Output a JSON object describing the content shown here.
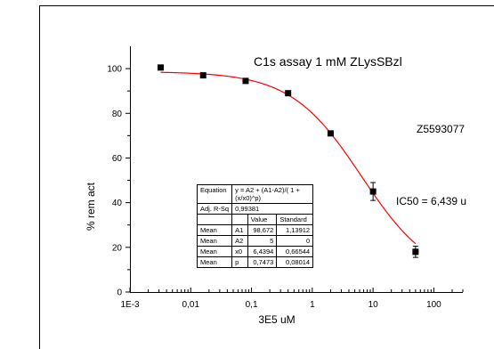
{
  "chart_data": {
    "type": "scatter",
    "title": "C1s assay 1 mM ZLysSBzl",
    "xlabel": "3E5 uM",
    "ylabel": "% rem act",
    "x_scale": "log",
    "xlim": [
      0.001,
      300
    ],
    "ylim": [
      0,
      110
    ],
    "x_ticks": [
      {
        "value": 0.001,
        "label": "1E-3"
      },
      {
        "value": 0.01,
        "label": "0,01"
      },
      {
        "value": 0.1,
        "label": "0,1"
      },
      {
        "value": 1,
        "label": "1"
      },
      {
        "value": 10,
        "label": "10"
      },
      {
        "value": 100,
        "label": "100"
      }
    ],
    "y_ticks": [
      0,
      20,
      40,
      60,
      80,
      100
    ],
    "series": [
      {
        "kind": "points",
        "color": "#000000",
        "x": [
          0.0032,
          0.016,
          0.08,
          0.4,
          2,
          10,
          50
        ],
        "y": [
          100.5,
          97,
          94.5,
          89,
          71,
          45,
          18
        ],
        "error": [
          0,
          0,
          0,
          0,
          0,
          4,
          2.5
        ]
      },
      {
        "kind": "fit",
        "color": "#ff0000",
        "model": "y = A2 + (A1-A2)/(1 + (x/x0)^p)",
        "params": {
          "A1": 98.672,
          "A2": 5,
          "x0": 6.4394,
          "p": 0.7473
        },
        "x_range": [
          0.0032,
          50
        ]
      }
    ],
    "annotations": [
      "Z5593077",
      "IC50 = 6,439 u"
    ],
    "fit_table": {
      "equation_label": "Equation",
      "equation": "y = A2 + (A1-A2)/( 1 + (x/x0)^p)",
      "adj_label": "Adj. R-Sq",
      "adj_value": "0,99381",
      "col_value": "Value",
      "col_standard": "Standard",
      "rows": [
        {
          "stat": "Mean",
          "param": "A1",
          "value": "98,672",
          "standard": "1,13912"
        },
        {
          "stat": "Mean",
          "param": "A2",
          "value": "5",
          "standard": "0"
        },
        {
          "stat": "Mean",
          "param": "x0",
          "value": "6,4394",
          "standard": "0,66544"
        },
        {
          "stat": "Mean",
          "param": "p",
          "value": "0,7473",
          "standard": "0,08014"
        }
      ]
    }
  }
}
